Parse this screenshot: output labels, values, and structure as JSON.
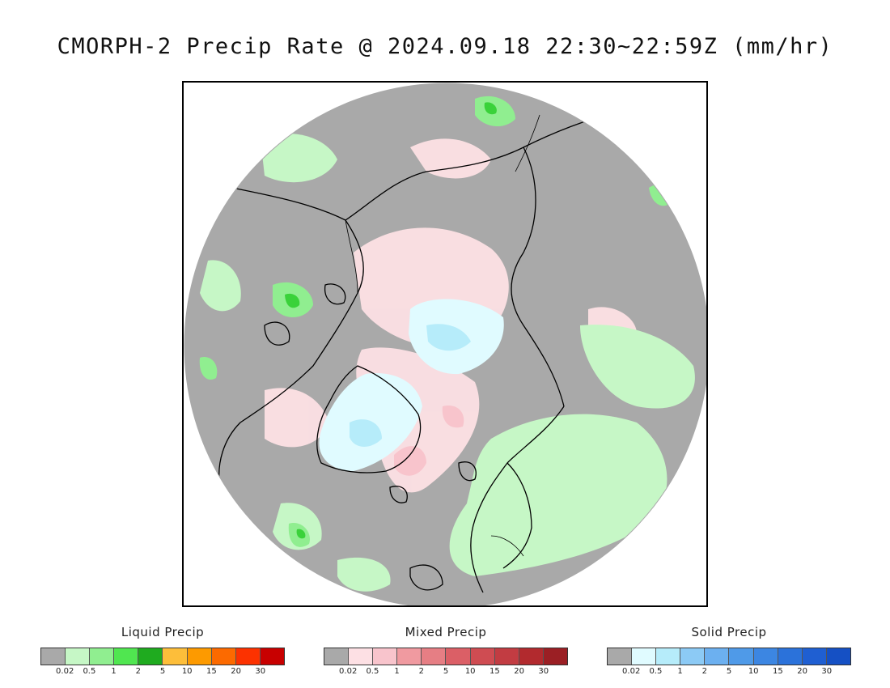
{
  "title": "CMORPH-2 Precip Rate @ 2024.09.18 22:30~22:59Z (mm/hr)",
  "map": {
    "projection": "north polar stereographic",
    "colors": {
      "background": "#a9a9a9",
      "coast": "#000000",
      "liquid_light": "#c6f7c6",
      "liquid_mid": "#90ee90",
      "liquid_heavy": "#3ad23a",
      "mixed_light": "#fde0e4",
      "mixed_mid": "#f8c4cc",
      "solid_light": "#e0fbff",
      "solid_mid": "#b6ecfa"
    }
  },
  "legends": [
    {
      "title": "Liquid Precip",
      "ticks": [
        "0.02",
        "0.5",
        "1",
        "2",
        "5",
        "10",
        "15",
        "20",
        "30"
      ],
      "colors": [
        "#a9a9a9",
        "#c6f7c6",
        "#90ee90",
        "#50e650",
        "#1fab1f",
        "#fdbe3a",
        "#fd9a00",
        "#fc6a00",
        "#fc3200",
        "#c80000"
      ]
    },
    {
      "title": "Mixed Precip",
      "ticks": [
        "0.02",
        "0.5",
        "1",
        "2",
        "5",
        "10",
        "15",
        "20",
        "30"
      ],
      "colors": [
        "#a9a9a9",
        "#fde0e4",
        "#f8c4cc",
        "#f09aa0",
        "#e67e84",
        "#db5f66",
        "#cf4c52",
        "#c23c42",
        "#b22a2e",
        "#9b1f24"
      ]
    },
    {
      "title": "Solid Precip",
      "ticks": [
        "0.02",
        "0.5",
        "1",
        "2",
        "5",
        "10",
        "15",
        "20",
        "30"
      ],
      "colors": [
        "#a9a9a9",
        "#e0fbff",
        "#b6ecfa",
        "#8ccaf5",
        "#6cb0f0",
        "#4f9ae8",
        "#3c86e2",
        "#2b72da",
        "#1f5fd2",
        "#1550c4"
      ]
    }
  ]
}
